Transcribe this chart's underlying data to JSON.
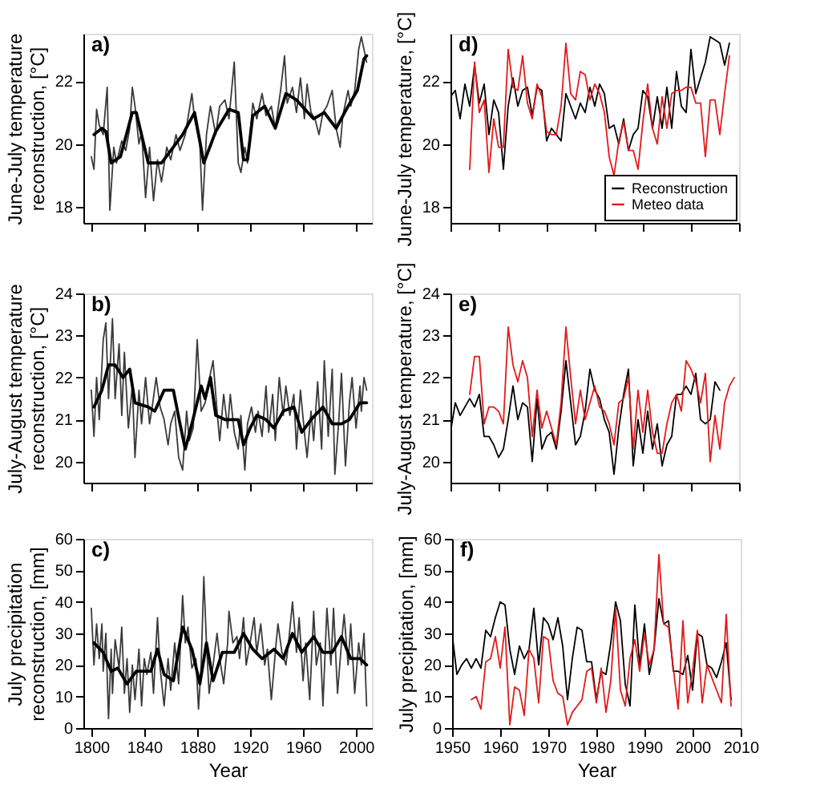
{
  "chart_data": [
    {
      "type": "line",
      "ylabel": "June-July temperature\nreconstruction, [°C]",
      "annotations": [
        "a)"
      ],
      "xlim": [
        1794,
        2012
      ],
      "xticks": [
        1800,
        1840,
        1880,
        1920,
        1960,
        2000
      ],
      "ylim": [
        17.5,
        23.5
      ],
      "yticks": [
        18,
        20,
        22
      ],
      "tick_labels": "y",
      "grid": false,
      "legend": false,
      "series": [
        {
          "color": "#3a3a3a",
          "x": [
            1800,
            1802,
            1804,
            1806,
            1809,
            1812,
            1814,
            1817,
            1819,
            1823,
            1826,
            1829,
            1831,
            1833,
            1836,
            1838,
            1841,
            1844,
            1847,
            1850,
            1853,
            1857,
            1860,
            1864,
            1867,
            1871,
            1876,
            1878,
            1882,
            1884,
            1887,
            1890,
            1894,
            1897,
            1901,
            1904,
            1908,
            1911,
            1913,
            1916,
            1918,
            1922,
            1925,
            1929,
            1932,
            1936,
            1939,
            1943,
            1946,
            1948,
            1952,
            1955,
            1958,
            1961,
            1963,
            1966,
            1969,
            1972,
            1975,
            1978,
            1982,
            1985,
            1988,
            1990,
            1994,
            1996,
            1999,
            2002,
            2004,
            2006,
            2008
          ],
          "values": [
            19.6,
            19.2,
            21.1,
            20.6,
            20.3,
            21.8,
            17.9,
            19.9,
            19.4,
            20.1,
            19.8,
            20.5,
            21.8,
            21.2,
            20.0,
            20.4,
            18.3,
            19.9,
            18.2,
            19.5,
            18.8,
            19.9,
            19.5,
            20.3,
            19.8,
            20.3,
            21.6,
            20.8,
            20.0,
            17.9,
            20.3,
            21.2,
            20.3,
            21.2,
            21.4,
            20.8,
            22.6,
            19.4,
            19.1,
            19.9,
            19.4,
            21.3,
            20.8,
            21.6,
            20.9,
            21.2,
            20.5,
            21.7,
            22.8,
            21.3,
            21.8,
            21.0,
            22.1,
            20.8,
            21.9,
            21.0,
            20.8,
            20.3,
            21.0,
            21.2,
            21.7,
            20.5,
            19.9,
            20.9,
            21.7,
            21.2,
            21.7,
            23.0,
            23.4,
            23.0,
            22.6
          ]
        },
        {
          "color": "#000000",
          "x": [
            1802,
            1808,
            1811,
            1815,
            1822,
            1831,
            1834,
            1843,
            1853,
            1869,
            1878,
            1885,
            1894,
            1904,
            1911,
            1915,
            1918,
            1922,
            1931,
            1939,
            1947,
            1955,
            1968,
            1976,
            1985,
            1994,
            2001,
            2006,
            2008
          ],
          "values": [
            20.3,
            20.5,
            20.4,
            19.4,
            19.6,
            21.0,
            21.0,
            19.4,
            19.4,
            20.3,
            21.0,
            19.4,
            20.4,
            21.1,
            21.0,
            19.5,
            19.5,
            20.9,
            21.2,
            20.5,
            21.6,
            21.4,
            20.8,
            21.0,
            20.5,
            21.2,
            21.7,
            22.7,
            22.8
          ]
        }
      ]
    },
    {
      "type": "line",
      "ylabel": "June-July temperature, [°C]",
      "annotations": [
        "d)"
      ],
      "xlim": [
        1950,
        2010
      ],
      "xticks": [
        1950,
        1960,
        1970,
        1980,
        1990,
        2000,
        2010
      ],
      "ylim": [
        17.5,
        23.5
      ],
      "yticks": [
        18,
        20,
        22
      ],
      "tick_labels": "y",
      "grid": false,
      "legend": "bottom right",
      "series": [
        {
          "name": "Reconstruction",
          "color": "#000000",
          "x": [
            1950,
            1951,
            1952,
            1953,
            1954,
            1955,
            1956,
            1957,
            1958,
            1959,
            1960,
            1961,
            1962,
            1963,
            1964,
            1965,
            1966,
            1967,
            1968,
            1969,
            1970,
            1971,
            1972,
            1973,
            1974,
            1975,
            1976,
            1977,
            1978,
            1979,
            1980,
            1981,
            1982,
            1983,
            1984,
            1985,
            1986,
            1987,
            1988,
            1989,
            1990,
            1991,
            1992,
            1993,
            1994,
            1995,
            1996,
            1997,
            1998,
            1999,
            2000,
            2001,
            2002,
            2003,
            2004,
            2005,
            2006,
            2007,
            2008
          ],
          "values": [
            21.5,
            21.7,
            20.8,
            21.9,
            21.2,
            22.5,
            21.3,
            21.9,
            20.3,
            21.4,
            21.0,
            19.2,
            21.2,
            22.1,
            21.2,
            21.7,
            21.8,
            20.9,
            21.8,
            21.7,
            20.1,
            20.5,
            20.3,
            20.1,
            21.6,
            21.2,
            20.8,
            21.3,
            21.0,
            21.8,
            21.2,
            21.9,
            21.6,
            20.5,
            20.6,
            20.0,
            20.8,
            19.8,
            20.3,
            20.5,
            21.7,
            21.5,
            20.5,
            21.5,
            20.5,
            21.8,
            20.5,
            22.3,
            21.2,
            21.0,
            23.0,
            21.6,
            22.1,
            22.6,
            23.4,
            23.3,
            23.2,
            22.5,
            23.2
          ]
        },
        {
          "name": "Meteo data",
          "color": "#e31a1c",
          "x": [
            1954,
            1955,
            1956,
            1957,
            1958,
            1959,
            1960,
            1961,
            1962,
            1963,
            1964,
            1965,
            1966,
            1967,
            1968,
            1969,
            1970,
            1971,
            1972,
            1973,
            1974,
            1975,
            1976,
            1977,
            1978,
            1979,
            1980,
            1981,
            1982,
            1983,
            1984,
            1985,
            1986,
            1987,
            1988,
            1989,
            1990,
            1991,
            1992,
            1993,
            1994,
            1995,
            1996,
            1997,
            1998,
            1999,
            2000,
            2001,
            2002,
            2003,
            2004,
            2005,
            2006,
            2007,
            2008
          ],
          "values": [
            19.2,
            22.6,
            21.0,
            21.4,
            19.1,
            20.8,
            19.9,
            19.9,
            23.0,
            21.8,
            21.7,
            22.8,
            21.3,
            20.8,
            21.9,
            21.5,
            20.4,
            20.3,
            20.3,
            21.2,
            23.2,
            21.6,
            21.4,
            22.3,
            22.2,
            21.4,
            21.9,
            21.6,
            21.0,
            19.6,
            19.0,
            20.1,
            20.7,
            19.8,
            19.8,
            19.2,
            20.7,
            21.9,
            20.5,
            20.0,
            21.5,
            20.5,
            21.6,
            21.7,
            21.7,
            21.8,
            21.8,
            21.3,
            21.3,
            19.6,
            21.4,
            21.4,
            20.3,
            21.6,
            22.8
          ]
        }
      ]
    },
    {
      "type": "line",
      "ylabel": "July-August temperature\nreconstruction, [°C]",
      "annotations": [
        "b)"
      ],
      "xlim": [
        1794,
        2012
      ],
      "xticks": [
        1800,
        1840,
        1880,
        1920,
        1960,
        2000
      ],
      "ylim": [
        19.5,
        24
      ],
      "yticks": [
        20,
        21,
        22,
        23,
        24
      ],
      "tick_labels": "y",
      "grid": false,
      "legend": false,
      "series": [
        {
          "color": "#3a3a3a",
          "x": [
            1800,
            1802,
            1804,
            1806,
            1809,
            1811,
            1813,
            1816,
            1818,
            1821,
            1823,
            1825,
            1828,
            1831,
            1833,
            1836,
            1838,
            1841,
            1844,
            1846,
            1849,
            1852,
            1855,
            1858,
            1860,
            1863,
            1866,
            1869,
            1872,
            1874,
            1877,
            1880,
            1883,
            1886,
            1890,
            1892,
            1895,
            1897,
            1900,
            1903,
            1905,
            1908,
            1911,
            1913,
            1916,
            1918,
            1921,
            1924,
            1926,
            1929,
            1932,
            1934,
            1937,
            1939,
            1942,
            1945,
            1947,
            1950,
            1953,
            1955,
            1958,
            1961,
            1963,
            1966,
            1968,
            1971,
            1974,
            1976,
            1979,
            1982,
            1984,
            1987,
            1989,
            1992,
            1995,
            1997,
            2000,
            2003,
            2004,
            2006,
            2008
          ],
          "values": [
            21.7,
            20.6,
            22.0,
            21.0,
            22.9,
            23.3,
            21.5,
            23.4,
            21.5,
            22.8,
            21.1,
            22.6,
            20.8,
            21.8,
            20.1,
            21.7,
            20.9,
            22.0,
            20.9,
            21.3,
            22.0,
            21.3,
            21.0,
            20.4,
            20.9,
            21.2,
            20.1,
            19.8,
            21.2,
            20.5,
            20.8,
            22.9,
            21.2,
            21.4,
            22.1,
            22.4,
            21.2,
            20.5,
            21.6,
            20.8,
            21.6,
            20.7,
            20.3,
            21.1,
            19.8,
            20.9,
            21.3,
            20.7,
            21.2,
            20.6,
            21.8,
            20.7,
            21.6,
            20.5,
            22.0,
            21.1,
            21.8,
            21.1,
            21.6,
            20.3,
            21.7,
            20.7,
            20.1,
            21.2,
            20.5,
            21.9,
            20.3,
            22.4,
            20.6,
            22.2,
            19.7,
            21.0,
            22.1,
            19.9,
            21.4,
            22.0,
            20.8,
            21.8,
            21.2,
            22.0,
            21.7
          ]
        },
        {
          "color": "#000000",
          "x": [
            1802,
            1808,
            1813,
            1818,
            1824,
            1829,
            1833,
            1843,
            1848,
            1855,
            1862,
            1867,
            1871,
            1876,
            1883,
            1886,
            1890,
            1894,
            1901,
            1906,
            1911,
            1915,
            1920,
            1925,
            1932,
            1938,
            1945,
            1953,
            1959,
            1966,
            1975,
            1982,
            1989,
            1995,
            2003,
            2008
          ],
          "values": [
            21.3,
            21.7,
            22.3,
            22.3,
            22.0,
            22.2,
            21.4,
            21.3,
            21.2,
            21.7,
            21.7,
            20.9,
            20.3,
            20.9,
            21.8,
            21.5,
            22.0,
            21.1,
            21.0,
            21.0,
            21.0,
            20.4,
            20.8,
            21.1,
            21.0,
            20.8,
            21.2,
            21.3,
            20.7,
            21.0,
            21.3,
            20.9,
            20.9,
            21.0,
            21.4,
            21.4
          ]
        }
      ]
    },
    {
      "type": "line",
      "ylabel": "July-August temperature, [°C]",
      "annotations": [
        "e)"
      ],
      "xlim": [
        1950,
        2010
      ],
      "xticks": [
        1950,
        1960,
        1970,
        1980,
        1990,
        2000,
        2010
      ],
      "ylim": [
        19.5,
        24
      ],
      "yticks": [
        20,
        21,
        22,
        23,
        24
      ],
      "tick_labels": "y",
      "grid": false,
      "legend": false,
      "series": [
        {
          "color": "#000000",
          "x": [
            1950,
            1951,
            1952,
            1953,
            1954,
            1955,
            1956,
            1957,
            1958,
            1959,
            1960,
            1961,
            1962,
            1963,
            1964,
            1965,
            1966,
            1967,
            1968,
            1969,
            1970,
            1971,
            1972,
            1973,
            1974,
            1975,
            1976,
            1977,
            1978,
            1979,
            1980,
            1981,
            1982,
            1983,
            1984,
            1985,
            1986,
            1987,
            1988,
            1989,
            1990,
            1991,
            1992,
            1993,
            1994,
            1995,
            1996,
            1997,
            1998,
            1999,
            2000,
            2001,
            2002,
            2003,
            2004,
            2005,
            2006
          ],
          "values": [
            20.7,
            21.4,
            21.1,
            21.3,
            21.5,
            21.3,
            21.6,
            20.6,
            20.6,
            20.4,
            20.1,
            20.3,
            21.0,
            21.8,
            21.0,
            21.4,
            21.3,
            20.0,
            21.5,
            20.3,
            20.6,
            20.7,
            20.3,
            21.2,
            22.4,
            21.4,
            20.4,
            20.6,
            21.2,
            22.2,
            21.7,
            21.5,
            21.0,
            20.7,
            19.7,
            20.8,
            21.6,
            22.2,
            19.9,
            21.0,
            20.2,
            21.2,
            20.3,
            20.9,
            19.9,
            20.4,
            20.6,
            21.6,
            21.6,
            21.8,
            21.6,
            22.1,
            21.0,
            20.9,
            21.0,
            21.9,
            21.7
          ]
        },
        {
          "color": "#e31a1c",
          "x": [
            1954,
            1955,
            1956,
            1957,
            1958,
            1959,
            1960,
            1961,
            1962,
            1963,
            1964,
            1965,
            1966,
            1967,
            1968,
            1969,
            1970,
            1971,
            1972,
            1973,
            1974,
            1975,
            1976,
            1977,
            1978,
            1979,
            1980,
            1981,
            1982,
            1983,
            1984,
            1985,
            1986,
            1987,
            1988,
            1989,
            1990,
            1991,
            1992,
            1993,
            1994,
            1995,
            1996,
            1997,
            1998,
            1999,
            2000,
            2001,
            2002,
            2003,
            2004,
            2005,
            2006,
            2007,
            2008,
            2009
          ],
          "values": [
            21.6,
            22.5,
            22.5,
            20.9,
            21.3,
            21.3,
            21.2,
            20.9,
            23.2,
            22.3,
            21.9,
            22.4,
            22.0,
            20.6,
            21.7,
            20.8,
            21.2,
            20.8,
            20.4,
            21.4,
            23.2,
            22.0,
            20.9,
            21.7,
            21.0,
            21.4,
            21.8,
            21.3,
            21.2,
            20.9,
            20.4,
            21.4,
            21.5,
            22.0,
            20.3,
            21.7,
            20.7,
            21.7,
            20.7,
            20.2,
            20.2,
            20.9,
            21.4,
            21.6,
            21.2,
            22.4,
            22.2,
            21.9,
            21.4,
            22.1,
            20.0,
            21.1,
            20.3,
            21.4,
            21.8,
            22.0
          ]
        }
      ]
    },
    {
      "type": "line",
      "xlabel": "Year",
      "ylabel": "July precipitation\nreconstruction, [mm]",
      "annotations": [
        "c)"
      ],
      "xlim": [
        1794,
        2012
      ],
      "xticks": [
        1800,
        1840,
        1880,
        1920,
        1960,
        2000
      ],
      "ylim": [
        0,
        60
      ],
      "yticks": [
        0,
        10,
        20,
        30,
        40,
        50,
        60
      ],
      "grid": false,
      "legend": false,
      "series": [
        {
          "color": "#3a3a3a",
          "x": [
            1800,
            1802,
            1804,
            1806,
            1808,
            1809,
            1811,
            1813,
            1815,
            1816,
            1818,
            1821,
            1823,
            1825,
            1827,
            1829,
            1831,
            1833,
            1836,
            1838,
            1840,
            1842,
            1845,
            1847,
            1850,
            1852,
            1855,
            1858,
            1860,
            1863,
            1866,
            1869,
            1871,
            1873,
            1876,
            1879,
            1881,
            1883,
            1885,
            1887,
            1889,
            1892,
            1895,
            1897,
            1900,
            1903,
            1904,
            1907,
            1910,
            1912,
            1915,
            1917,
            1920,
            1923,
            1925,
            1928,
            1931,
            1933,
            1936,
            1939,
            1941,
            1944,
            1947,
            1949,
            1952,
            1955,
            1957,
            1960,
            1962,
            1965,
            1968,
            1970,
            1973,
            1975,
            1978,
            1981,
            1983,
            1986,
            1989,
            1991,
            1994,
            1996,
            1999,
            2002,
            2004,
            2006,
            2008
          ],
          "values": [
            38,
            20,
            33,
            22,
            33,
            18,
            30,
            3,
            25,
            11,
            28,
            19,
            32,
            11,
            22,
            5,
            20,
            9,
            25,
            7,
            22,
            17,
            24,
            11,
            35,
            19,
            7,
            22,
            12,
            27,
            14,
            42,
            27,
            32,
            19,
            22,
            6,
            20,
            48,
            27,
            11,
            20,
            30,
            22,
            14,
            27,
            37,
            27,
            29,
            22,
            35,
            20,
            27,
            35,
            24,
            33,
            20,
            25,
            9,
            24,
            33,
            24,
            20,
            27,
            40,
            24,
            35,
            15,
            27,
            9,
            37,
            20,
            27,
            7,
            38,
            20,
            38,
            11,
            27,
            36,
            20,
            33,
            11,
            27,
            20,
            30,
            7
          ]
        },
        {
          "color": "#000000",
          "x": [
            1802,
            1809,
            1815,
            1820,
            1827,
            1834,
            1845,
            1850,
            1855,
            1862,
            1869,
            1876,
            1882,
            1887,
            1892,
            1899,
            1908,
            1915,
            1922,
            1929,
            1938,
            1945,
            1952,
            1959,
            1968,
            1975,
            1982,
            1989,
            1996,
            2003,
            2008
          ],
          "values": [
            27,
            24,
            18,
            19,
            14,
            18,
            18,
            25,
            17,
            15,
            32,
            25,
            14,
            27,
            15,
            24,
            24,
            30,
            25,
            22,
            25,
            22,
            30,
            24,
            29,
            24,
            24,
            29,
            22,
            22,
            20
          ]
        }
      ]
    },
    {
      "type": "line",
      "xlabel": "Year",
      "ylabel": "July precipitation, [mm]",
      "annotations": [
        "f)"
      ],
      "xlim": [
        1950,
        2010
      ],
      "xticks": [
        1950,
        1960,
        1970,
        1980,
        1990,
        2000,
        2010
      ],
      "ylim": [
        0,
        60
      ],
      "yticks": [
        0,
        10,
        20,
        30,
        40,
        50,
        60
      ],
      "grid": false,
      "legend": false,
      "series": [
        {
          "color": "#000000",
          "x": [
            1950,
            1951,
            1952,
            1953,
            1954,
            1955,
            1956,
            1957,
            1958,
            1959,
            1960,
            1961,
            1962,
            1963,
            1964,
            1965,
            1966,
            1967,
            1968,
            1969,
            1970,
            1971,
            1972,
            1973,
            1974,
            1975,
            1976,
            1977,
            1978,
            1979,
            1980,
            1981,
            1982,
            1983,
            1984,
            1985,
            1986,
            1987,
            1988,
            1989,
            1990,
            1991,
            1992,
            1993,
            1994,
            1995,
            1996,
            1997,
            1998,
            1999,
            2000,
            2001,
            2002,
            2003,
            2004,
            2005,
            2006,
            2007,
            2008
          ],
          "values": [
            30,
            17,
            20,
            22,
            19,
            22,
            19,
            31,
            29,
            35,
            40,
            39,
            25,
            17,
            26,
            22,
            25,
            38,
            20,
            35,
            33,
            28,
            35,
            26,
            9,
            22,
            32,
            31,
            21,
            21,
            9,
            18,
            17,
            27,
            40,
            34,
            14,
            7,
            39,
            20,
            33,
            17,
            25,
            41,
            33,
            34,
            18,
            18,
            17,
            23,
            12,
            30,
            29,
            20,
            19,
            16,
            21,
            27,
            9
          ]
        },
        {
          "color": "#e31a1c",
          "x": [
            1954,
            1955,
            1956,
            1957,
            1958,
            1959,
            1960,
            1961,
            1962,
            1963,
            1964,
            1965,
            1966,
            1967,
            1968,
            1969,
            1970,
            1971,
            1972,
            1973,
            1974,
            1975,
            1976,
            1977,
            1978,
            1979,
            1980,
            1981,
            1982,
            1983,
            1984,
            1985,
            1986,
            1987,
            1988,
            1989,
            1990,
            1991,
            1992,
            1993,
            1994,
            1995,
            1996,
            1997,
            1998,
            1999,
            2000,
            2001,
            2002,
            2003,
            2004,
            2005,
            2006,
            2007,
            2008
          ],
          "values": [
            9,
            10,
            6,
            21,
            22,
            29,
            19,
            32,
            1,
            13,
            12,
            4,
            25,
            22,
            8,
            29,
            28,
            15,
            11,
            10,
            1,
            5,
            7,
            9,
            18,
            19,
            8,
            19,
            5,
            15,
            38,
            12,
            7,
            22,
            28,
            18,
            30,
            20,
            25,
            55,
            33,
            32,
            19,
            6,
            34,
            8,
            18,
            31,
            8,
            20,
            16,
            12,
            8,
            36,
            7
          ]
        }
      ]
    }
  ]
}
